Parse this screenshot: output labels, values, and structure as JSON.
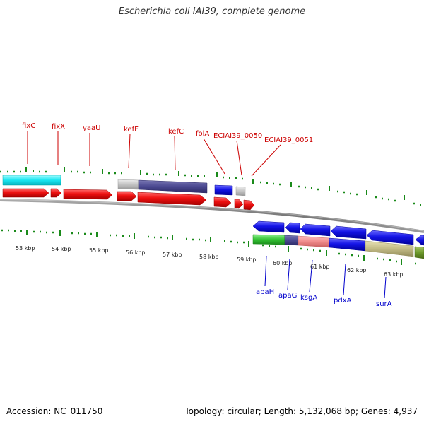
{
  "title": "Escherichia coli IAI39, complete genome",
  "footer": {
    "accession": "Accession: NC_011750",
    "summary": "Topology: circular; Length: 5,132,068 bp; Genes: 4,937"
  },
  "colors": {
    "forward_label": "#cc0000",
    "reverse_label": "#0000cc",
    "tick": "#1a8a1a",
    "backbone": "#888888"
  },
  "scale_labels": [
    "53 kbp",
    "54 kbp",
    "55 kbp",
    "56 kbp",
    "57 kbp",
    "58 kbp",
    "59 kbp",
    "60 kbp",
    "61 kbp",
    "62 kbp",
    "63 kbp"
  ],
  "forward_genes": [
    "fixC",
    "fixX",
    "yaaU",
    "kefF",
    "kefC",
    "folA",
    "ECIAI39_0050",
    "ECIAI39_0051"
  ],
  "reverse_genes": [
    "apaH",
    "apaG",
    "ksgA",
    "pdxA",
    "surA"
  ]
}
